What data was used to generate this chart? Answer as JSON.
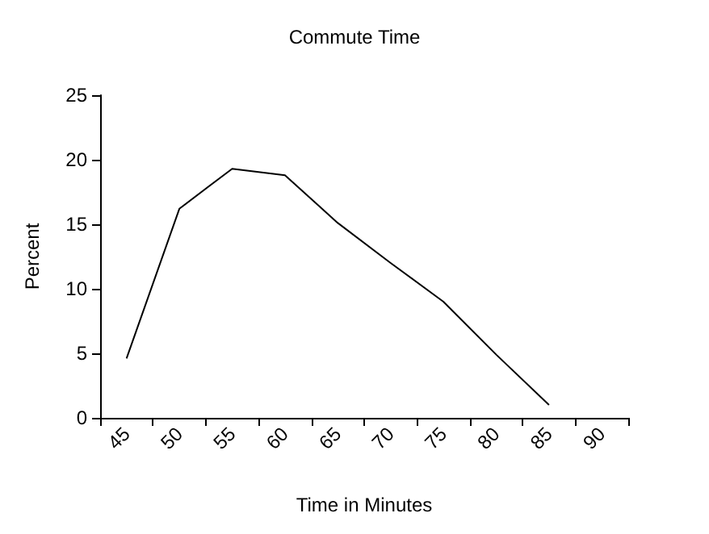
{
  "chart_data": {
    "type": "line",
    "title": "Commute Time",
    "xlabel": "Time in Minutes",
    "ylabel": "Percent",
    "categories": [
      "45",
      "50",
      "55",
      "60",
      "65",
      "70",
      "75",
      "80",
      "85",
      "90"
    ],
    "series": [
      {
        "color": "#000000",
        "values": [
          4.6,
          16.2,
          19.3,
          18.8,
          15.1,
          12.0,
          9.0,
          4.9,
          1.0,
          null
        ]
      }
    ],
    "ylim": [
      0,
      25
    ],
    "yticks": [
      0,
      5,
      10,
      15,
      20,
      25
    ],
    "grid": false,
    "marker": "none",
    "line_style": "solid"
  }
}
